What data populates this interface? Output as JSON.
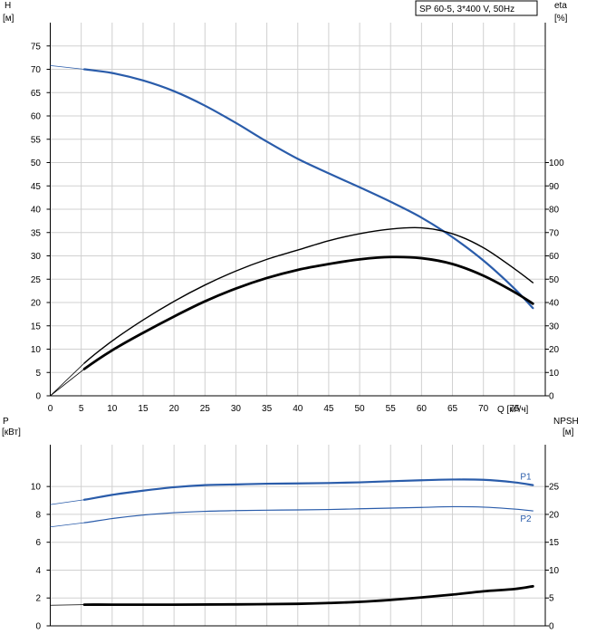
{
  "chart_data": [
    {
      "name": "performance",
      "type": "line",
      "badge": "SP 60-5, 3*400 V, 50Hz",
      "left_axis": {
        "title_line1": "H",
        "title_line2": "[м]",
        "range": [
          0,
          80
        ],
        "ticks": [
          "0",
          "5",
          "10",
          "15",
          "20",
          "25",
          "30",
          "35",
          "40",
          "45",
          "50",
          "55",
          "60",
          "65",
          "70",
          "75"
        ]
      },
      "right_axis": {
        "title_line1": "eta",
        "title_line2": "[%]",
        "range": [
          0,
          160
        ],
        "ticks": [
          "0",
          "10",
          "20",
          "30",
          "40",
          "50",
          "60",
          "70",
          "80",
          "90",
          "100"
        ]
      },
      "x_axis": {
        "title": "Q [м³/ч]",
        "range": [
          0,
          80
        ],
        "ticks": [
          "0",
          "5",
          "10",
          "15",
          "20",
          "25",
          "30",
          "35",
          "40",
          "45",
          "50",
          "55",
          "60",
          "65",
          "70",
          "75"
        ]
      },
      "series": [
        {
          "name": "H",
          "axis": "left",
          "color": "#2a5caa",
          "width": 2.2,
          "x": [
            0,
            5.5,
            10,
            15,
            20,
            25,
            30,
            35,
            40,
            45,
            50,
            55,
            60,
            65,
            70,
            75,
            78
          ],
          "y": [
            70.8,
            70,
            69.2,
            67.6,
            65.3,
            62.2,
            58.5,
            54.5,
            50.8,
            47.7,
            44.7,
            41.6,
            38.2,
            34,
            29,
            23,
            18.8
          ]
        },
        {
          "name": "eta",
          "axis": "right",
          "color": "#000000",
          "width": 1.4,
          "x": [
            0,
            5.5,
            10,
            15,
            20,
            25,
            30,
            35,
            40,
            45,
            50,
            55,
            60,
            65,
            70,
            75,
            78
          ],
          "y": [
            0,
            14,
            23.5,
            32.5,
            40.5,
            47.5,
            53.5,
            58.5,
            62.5,
            66.5,
            69.5,
            71.5,
            72,
            69.5,
            63.5,
            54.5,
            48.5
          ]
        },
        {
          "name": "eta_total",
          "axis": "right",
          "color": "#000000",
          "width": 2.8,
          "x": [
            0,
            5.5,
            10,
            15,
            20,
            25,
            30,
            35,
            40,
            45,
            50,
            55,
            60,
            65,
            70,
            75,
            78
          ],
          "y": [
            0,
            11.5,
            19.5,
            27,
            34,
            40.5,
            46,
            50.5,
            54,
            56.5,
            58.5,
            59.5,
            59,
            56.5,
            51.5,
            44.5,
            39.5
          ]
        }
      ]
    },
    {
      "name": "power",
      "type": "line",
      "left_axis": {
        "title_line1": "P",
        "title_line2": "[кВт]",
        "range": [
          0,
          13
        ],
        "ticks": [
          "0",
          "2",
          "4",
          "6",
          "8",
          "10"
        ]
      },
      "right_axis": {
        "title_line1": "NPSH",
        "title_line2": "[м]",
        "range": [
          0,
          32.5
        ],
        "ticks": [
          "0",
          "5",
          "10",
          "15",
          "20",
          "25"
        ]
      },
      "x_range": [
        0,
        80
      ],
      "series": [
        {
          "name": "P1",
          "label": "P1",
          "axis": "left",
          "color": "#2a5caa",
          "width": 2.2,
          "x": [
            0,
            5.5,
            10,
            15,
            20,
            25,
            30,
            35,
            40,
            45,
            50,
            55,
            60,
            65,
            70,
            75,
            78
          ],
          "y": [
            8.7,
            9.05,
            9.4,
            9.7,
            9.95,
            10.1,
            10.15,
            10.2,
            10.22,
            10.25,
            10.3,
            10.38,
            10.45,
            10.5,
            10.48,
            10.3,
            10.1
          ]
        },
        {
          "name": "P2",
          "label": "P2",
          "axis": "left",
          "color": "#2a5caa",
          "width": 1.2,
          "x": [
            0,
            5.5,
            10,
            15,
            20,
            25,
            30,
            35,
            40,
            45,
            50,
            55,
            60,
            65,
            70,
            75,
            78
          ],
          "y": [
            7.1,
            7.4,
            7.7,
            7.95,
            8.12,
            8.22,
            8.27,
            8.3,
            8.32,
            8.35,
            8.4,
            8.45,
            8.5,
            8.55,
            8.52,
            8.38,
            8.25
          ]
        },
        {
          "name": "NPSH",
          "axis": "right",
          "color": "#000000",
          "width": 2.8,
          "x": [
            0,
            5.5,
            10,
            20,
            30,
            40,
            45,
            50,
            55,
            60,
            65,
            70,
            75,
            78
          ],
          "y": [
            3.7,
            3.8,
            3.8,
            3.8,
            3.85,
            3.95,
            4.1,
            4.3,
            4.65,
            5.1,
            5.6,
            6.2,
            6.6,
            7.1
          ]
        }
      ]
    }
  ]
}
